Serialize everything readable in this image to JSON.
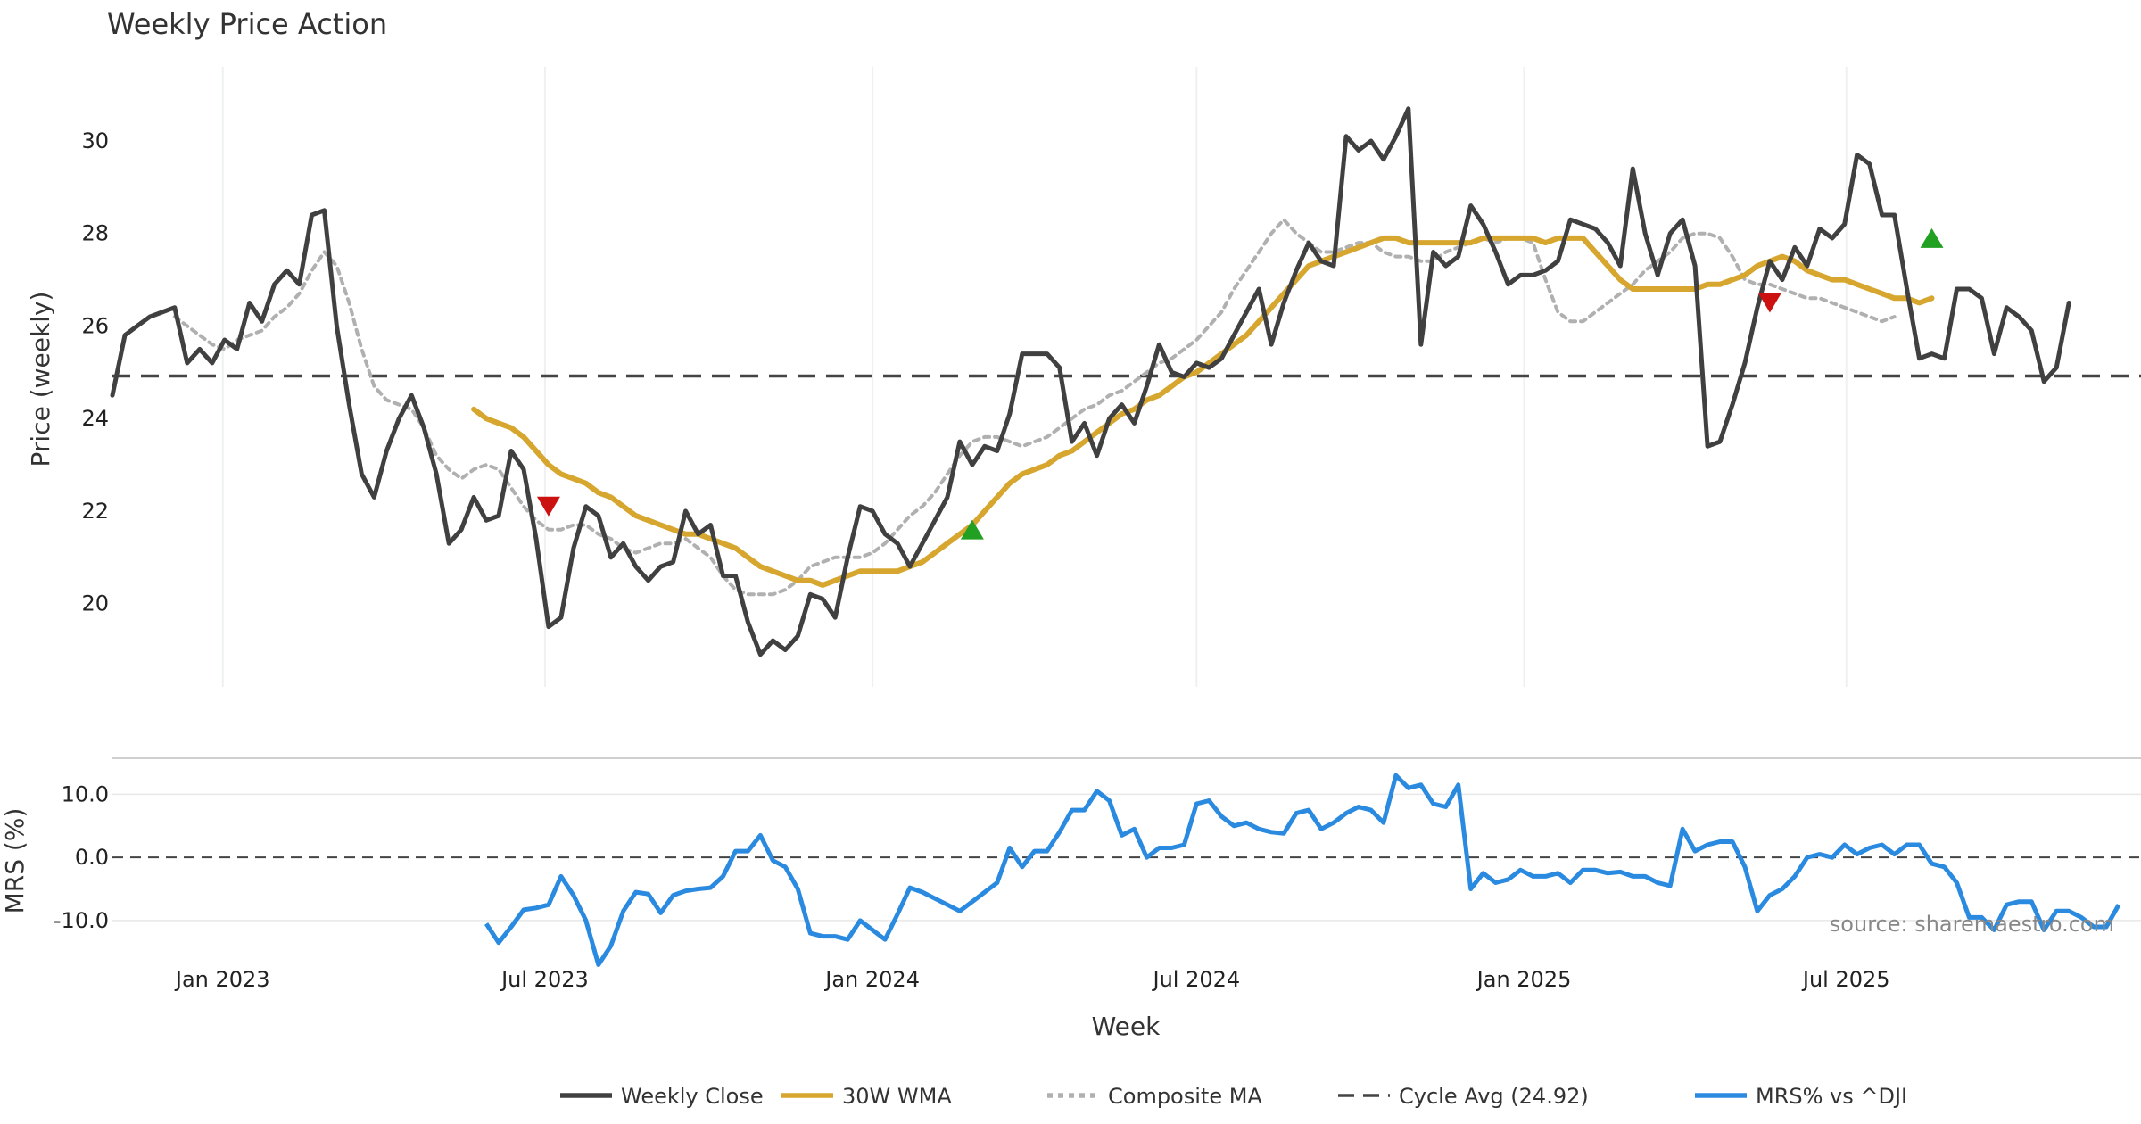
{
  "chart_data": [
    {
      "type": "line",
      "title": "Weekly Price Action",
      "ylabel": "Price (weekly)",
      "ylim": [
        18.2,
        31.6
      ],
      "yticks": [
        "20",
        "22",
        "24",
        "26",
        "28",
        "30"
      ],
      "grid": "vertical",
      "x_start_week": "2022-10-31",
      "x_step_days": 7,
      "series": [
        {
          "name": "Weekly Close",
          "color": "#404040",
          "values": [
            24.5,
            25.8,
            26.0,
            26.2,
            26.3,
            26.4,
            25.2,
            25.5,
            25.2,
            25.7,
            25.5,
            26.5,
            26.1,
            26.9,
            27.2,
            26.9,
            28.4,
            28.5,
            26.0,
            24.3,
            22.8,
            22.3,
            23.3,
            24.0,
            24.5,
            23.8,
            22.8,
            21.3,
            21.6,
            22.3,
            21.8,
            21.9,
            23.3,
            22.9,
            21.4,
            19.5,
            19.7,
            21.2,
            22.1,
            21.9,
            21.0,
            21.3,
            20.8,
            20.5,
            20.8,
            20.9,
            22.0,
            21.5,
            21.7,
            20.6,
            20.6,
            19.6,
            18.9,
            19.2,
            19.0,
            19.3,
            20.2,
            20.1,
            19.7,
            21.0,
            22.1,
            22.0,
            21.5,
            21.3,
            20.8,
            21.3,
            21.8,
            22.3,
            23.5,
            23.0,
            23.4,
            23.3,
            24.1,
            25.4,
            25.4,
            25.4,
            25.1,
            23.5,
            23.9,
            23.2,
            24.0,
            24.3,
            23.9,
            24.7,
            25.6,
            25.0,
            24.9,
            25.2,
            25.1,
            25.3,
            25.8,
            26.3,
            26.8,
            25.6,
            26.5,
            27.2,
            27.8,
            27.4,
            27.3,
            30.1,
            29.8,
            30.0,
            29.6,
            30.1,
            30.7,
            25.6,
            27.6,
            27.3,
            27.5,
            28.6,
            28.2,
            27.6,
            26.9,
            27.1,
            27.1,
            27.2,
            27.4,
            28.3,
            28.2,
            28.1,
            27.8,
            27.3,
            29.4,
            28.0,
            27.1,
            28.0,
            28.3,
            27.3,
            23.4,
            23.5,
            24.3,
            25.2,
            26.4,
            27.4,
            27.0,
            27.7,
            27.3,
            28.1,
            27.9,
            28.2,
            29.7,
            29.5,
            28.4,
            28.4,
            26.8,
            25.3,
            25.4,
            25.3,
            26.8,
            26.8,
            26.6,
            25.4,
            26.4,
            26.2,
            25.9,
            24.8,
            25.1,
            26.5
          ]
        },
        {
          "name": "30W WMA",
          "color": "#d6a62e",
          "start_index": 29,
          "values": [
            24.2,
            24.0,
            23.9,
            23.8,
            23.6,
            23.3,
            23.0,
            22.8,
            22.7,
            22.6,
            22.4,
            22.3,
            22.1,
            21.9,
            21.8,
            21.7,
            21.6,
            21.5,
            21.5,
            21.4,
            21.3,
            21.2,
            21.0,
            20.8,
            20.7,
            20.6,
            20.5,
            20.5,
            20.4,
            20.5,
            20.6,
            20.7,
            20.7,
            20.7,
            20.7,
            20.8,
            20.9,
            21.1,
            21.3,
            21.5,
            21.7,
            22.0,
            22.3,
            22.6,
            22.8,
            22.9,
            23.0,
            23.2,
            23.3,
            23.5,
            23.7,
            23.9,
            24.1,
            24.2,
            24.4,
            24.5,
            24.7,
            24.9,
            25.0,
            25.2,
            25.4,
            25.6,
            25.8,
            26.1,
            26.4,
            26.7,
            27.0,
            27.3,
            27.4,
            27.5,
            27.6,
            27.7,
            27.8,
            27.9,
            27.9,
            27.8,
            27.8,
            27.8,
            27.8,
            27.8,
            27.8,
            27.9,
            27.9,
            27.9,
            27.9,
            27.9,
            27.8,
            27.9,
            27.9,
            27.9,
            27.6,
            27.3,
            27.0,
            26.8,
            26.8,
            26.8,
            26.8,
            26.8,
            26.8,
            26.9,
            26.9,
            27.0,
            27.1,
            27.3,
            27.4,
            27.5,
            27.4,
            27.2,
            27.1,
            27.0,
            27.0,
            26.9,
            26.8,
            26.7,
            26.6,
            26.6,
            26.5,
            26.6
          ]
        },
        {
          "name": "Composite MA",
          "color": "#b0b0b0",
          "start_index": 5,
          "values": [
            26.2,
            26.0,
            25.8,
            25.6,
            25.5,
            25.7,
            25.8,
            25.9,
            26.2,
            26.4,
            26.7,
            27.2,
            27.6,
            27.3,
            26.5,
            25.5,
            24.7,
            24.4,
            24.3,
            24.2,
            23.8,
            23.2,
            22.9,
            22.7,
            22.9,
            23.0,
            22.9,
            22.5,
            22.1,
            21.8,
            21.6,
            21.6,
            21.7,
            21.7,
            21.5,
            21.4,
            21.2,
            21.1,
            21.2,
            21.3,
            21.3,
            21.4,
            21.2,
            21.0,
            20.6,
            20.3,
            20.2,
            20.2,
            20.2,
            20.3,
            20.5,
            20.8,
            20.9,
            21.0,
            21.0,
            21.0,
            21.1,
            21.3,
            21.6,
            21.9,
            22.1,
            22.4,
            22.8,
            23.2,
            23.5,
            23.6,
            23.6,
            23.5,
            23.4,
            23.5,
            23.6,
            23.8,
            24.0,
            24.2,
            24.3,
            24.5,
            24.6,
            24.8,
            25.0,
            25.2,
            25.3,
            25.5,
            25.7,
            26.0,
            26.3,
            26.8,
            27.2,
            27.6,
            28.0,
            28.3,
            28.0,
            27.8,
            27.6,
            27.6,
            27.7,
            27.8,
            27.8,
            27.6,
            27.5,
            27.5,
            27.4,
            27.4,
            27.6,
            27.7,
            27.8,
            27.9,
            27.8,
            27.9,
            27.9,
            27.8,
            27.0,
            26.3,
            26.1,
            26.1,
            26.3,
            26.5,
            26.7,
            26.9,
            27.2,
            27.4,
            27.6,
            27.9,
            28.0,
            28.0,
            27.9,
            27.5,
            27.0,
            26.9,
            26.9,
            26.8,
            26.7,
            26.6,
            26.6,
            26.5,
            26.4,
            26.3,
            26.2,
            26.1,
            26.2
          ]
        },
        {
          "name": "Cycle Avg (24.92)",
          "color": "#444444",
          "constant": 24.92
        }
      ],
      "markers": [
        {
          "kind": "sell",
          "index": 35,
          "value": 22.1,
          "color": "#cc1111"
        },
        {
          "kind": "buy",
          "index": 69,
          "value": 21.6,
          "color": "#22a022"
        },
        {
          "kind": "sell",
          "index": 133,
          "value": 26.5,
          "color": "#cc1111"
        },
        {
          "kind": "buy",
          "index": 146,
          "value": 27.9,
          "color": "#22a022"
        }
      ]
    },
    {
      "type": "line",
      "ylabel": "MRS (%)",
      "ylim": [
        -17.5,
        15
      ],
      "yticks": [
        "10.0",
        "0.0",
        "-10.0"
      ],
      "xticks": [
        "Jan 2023",
        "Jul 2023",
        "Jan 2024",
        "Jul 2024",
        "Jan 2025",
        "Jul 2025"
      ],
      "xlabel": "Week",
      "series": [
        {
          "name": "MRS% vs ^DJI",
          "color": "#2a8ae0",
          "start_index": 30,
          "values": [
            -10.5,
            -13.5,
            -11.0,
            -8.3,
            -8.0,
            -7.5,
            -3.0,
            -6.0,
            -10.0,
            -17.0,
            -14.0,
            -8.5,
            -5.5,
            -5.8,
            -8.8,
            -6.0,
            -5.3,
            -5.0,
            -4.8,
            -3.0,
            1.0,
            1.0,
            3.5,
            -0.5,
            -1.5,
            -5.0,
            -12.0,
            -12.5,
            -12.5,
            -13.0,
            -10.0,
            -11.5,
            -13.0,
            -9.0,
            -4.8,
            -5.5,
            -6.5,
            -7.5,
            -8.5,
            -7.0,
            -5.5,
            -4.0,
            1.5,
            -1.5,
            1.0,
            1.0,
            4.0,
            7.5,
            7.5,
            10.5,
            9.0,
            3.5,
            4.5,
            0.0,
            1.5,
            1.5,
            2.0,
            8.5,
            9.0,
            6.5,
            5.0,
            5.5,
            4.5,
            4.0,
            3.8,
            7.0,
            7.5,
            4.5,
            5.5,
            7.0,
            8.0,
            7.5,
            5.5,
            13.0,
            11.0,
            11.5,
            8.5,
            8.0,
            11.5,
            -5.0,
            -2.5,
            -4.0,
            -3.5,
            -2.0,
            -3.0,
            -3.0,
            -2.5,
            -4.0,
            -2.0,
            -2.0,
            -2.5,
            -2.3,
            -3.0,
            -3.0,
            -4.0,
            -4.5,
            4.5,
            1.0,
            2.0,
            2.5,
            2.5,
            -1.5,
            -8.5,
            -6.0,
            -5.0,
            -3.0,
            0.0,
            0.5,
            0.0,
            2.0,
            0.5,
            1.5,
            2.0,
            0.5,
            2.0,
            2.0,
            -1.0,
            -1.5,
            -4.0,
            -9.5,
            -9.5,
            -11.5,
            -7.5,
            -7.0,
            -7.0,
            -11.5,
            -8.5,
            -8.5,
            -9.5,
            -11.0,
            -11.0,
            -7.5
          ]
        }
      ]
    }
  ],
  "legend": {
    "placement": "bottom-center",
    "items": [
      {
        "label": "Weekly Close",
        "color": "#404040",
        "style": "solid"
      },
      {
        "label": "30W WMA",
        "color": "#d6a62e",
        "style": "solid"
      },
      {
        "label": "Composite MA",
        "color": "#b0b0b0",
        "style": "dotted"
      },
      {
        "label": "Cycle Avg (24.92)",
        "color": "#444444",
        "style": "dashed"
      },
      {
        "label": "MRS% vs ^DJI",
        "color": "#2a8ae0",
        "style": "solid"
      }
    ]
  },
  "source": "source: sharemaestro.com"
}
